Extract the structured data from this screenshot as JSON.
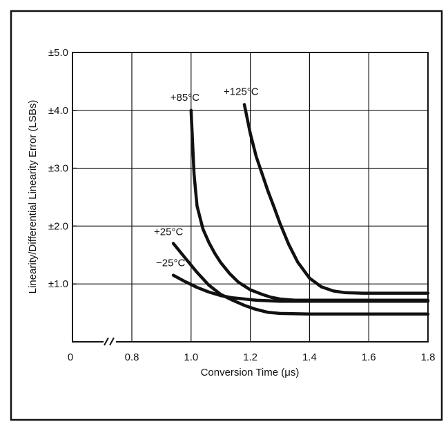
{
  "chart_data": {
    "type": "line",
    "title": "",
    "xlabel": "Conversion Time (μs)",
    "ylabel": "Linearity/Differential Linearity Error (LSBs)",
    "xlim": [
      0.7,
      1.8
    ],
    "ylim": [
      0,
      5
    ],
    "x_axis_break": true,
    "x_ticks": [
      {
        "value": 0.8,
        "label": "0.8"
      },
      {
        "value": 1.0,
        "label": "1.0"
      },
      {
        "value": 1.2,
        "label": "1.2"
      },
      {
        "value": 1.4,
        "label": "1.4"
      },
      {
        "value": 1.6,
        "label": "1.6"
      },
      {
        "value": 1.8,
        "label": "1.8"
      }
    ],
    "x_origin_label": "0",
    "y_ticks": [
      {
        "value": 1,
        "label": "±1.0"
      },
      {
        "value": 2,
        "label": "±2.0"
      },
      {
        "value": 3,
        "label": "±3.0"
      },
      {
        "value": 4,
        "label": "±4.0"
      },
      {
        "value": 5,
        "label": "±5.0"
      }
    ],
    "grid": true,
    "series": [
      {
        "name": "+85°C",
        "x": [
          1.0,
          1.01,
          1.02,
          1.04,
          1.06,
          1.08,
          1.1,
          1.13,
          1.16,
          1.2,
          1.24,
          1.27,
          1.3,
          1.35,
          1.4,
          1.5,
          1.6,
          1.7,
          1.8
        ],
        "y": [
          4.0,
          2.9,
          2.35,
          1.95,
          1.72,
          1.53,
          1.37,
          1.18,
          1.03,
          0.9,
          0.82,
          0.77,
          0.74,
          0.72,
          0.72,
          0.72,
          0.72,
          0.72,
          0.72
        ]
      },
      {
        "name": "+125°C",
        "x": [
          1.18,
          1.2,
          1.22,
          1.24,
          1.26,
          1.28,
          1.3,
          1.33,
          1.36,
          1.4,
          1.44,
          1.48,
          1.52,
          1.58,
          1.65,
          1.72,
          1.8
        ],
        "y": [
          4.1,
          3.6,
          3.2,
          2.9,
          2.6,
          2.33,
          2.05,
          1.68,
          1.38,
          1.1,
          0.95,
          0.88,
          0.85,
          0.84,
          0.84,
          0.84,
          0.84
        ]
      },
      {
        "name": "+25°C",
        "x": [
          0.94,
          0.98,
          1.02,
          1.06,
          1.1,
          1.14,
          1.18,
          1.22,
          1.26,
          1.3,
          1.4,
          1.5,
          1.6,
          1.7,
          1.8
        ],
        "y": [
          1.7,
          1.45,
          1.2,
          0.98,
          0.82,
          0.72,
          0.63,
          0.56,
          0.51,
          0.49,
          0.48,
          0.48,
          0.48,
          0.48,
          0.48
        ]
      },
      {
        "name": "−25°C",
        "x": [
          0.94,
          0.98,
          1.02,
          1.06,
          1.1,
          1.14,
          1.18,
          1.22,
          1.26,
          1.3,
          1.4,
          1.5,
          1.6,
          1.7,
          1.8
        ],
        "y": [
          1.15,
          1.04,
          0.94,
          0.86,
          0.8,
          0.76,
          0.74,
          0.72,
          0.71,
          0.7,
          0.7,
          0.7,
          0.7,
          0.7,
          0.7
        ]
      }
    ]
  }
}
